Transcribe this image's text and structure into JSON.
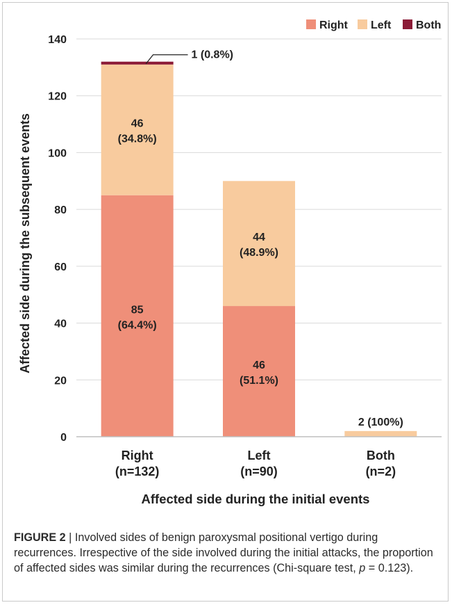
{
  "chart_data": {
    "type": "bar",
    "stacked": true,
    "xlabel": "Affected side during the initial events",
    "ylabel": "Affected side during the subsequent events",
    "ylim": [
      0,
      140
    ],
    "yticks": [
      0,
      20,
      40,
      60,
      80,
      100,
      120,
      140
    ],
    "grid": true,
    "legend_position": "top-right",
    "categories": [
      {
        "name": "Right",
        "n": "(n=132)"
      },
      {
        "name": "Left",
        "n": "(n=90)"
      },
      {
        "name": "Both",
        "n": "(n=2)"
      }
    ],
    "series": [
      {
        "name": "Right",
        "color": "#ef8f79",
        "values": [
          85,
          46,
          0
        ]
      },
      {
        "name": "Left",
        "color": "#f8cb9e",
        "values": [
          46,
          44,
          2
        ]
      },
      {
        "name": "Both",
        "color": "#8b1a36",
        "values": [
          1,
          0,
          0
        ]
      }
    ],
    "data_labels": [
      {
        "category": 0,
        "series": 0,
        "line1": "85",
        "line2": "(64.4%)"
      },
      {
        "category": 0,
        "series": 1,
        "line1": "46",
        "line2": "(34.8%)"
      },
      {
        "category": 1,
        "series": 0,
        "line1": "46",
        "line2": "(51.1%)"
      },
      {
        "category": 1,
        "series": 1,
        "line1": "44",
        "line2": "(48.9%)"
      }
    ],
    "callouts": [
      {
        "category": 0,
        "series": 2,
        "text": "1 (0.8%)"
      },
      {
        "category": 2,
        "series": 1,
        "text": "2 (100%)"
      }
    ]
  },
  "caption": {
    "figure_label": "FIGURE 2",
    "separator": " | ",
    "text_before_p": "Involved sides of benign paroxysmal positional vertigo during recurrences. Irrespective of the side involved during the initial attacks, the proportion of affected sides was similar during the recurrences (Chi-square test, ",
    "p_symbol": "p",
    "text_after_p": " = 0.123)."
  }
}
